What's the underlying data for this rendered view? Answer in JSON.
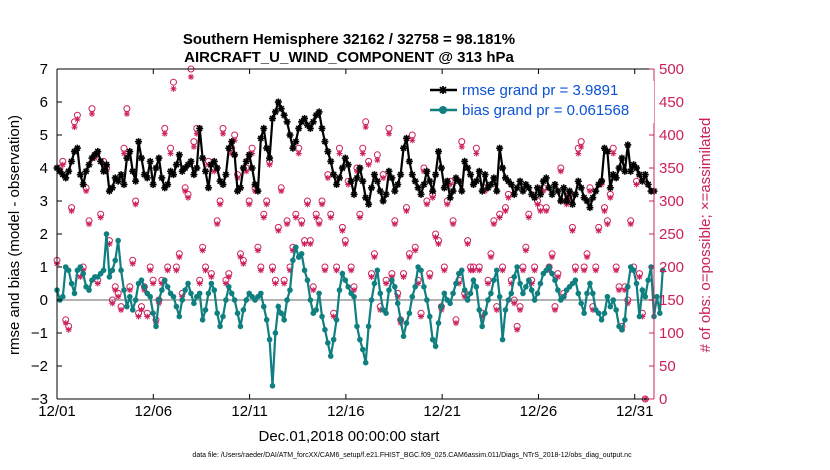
{
  "chart_data": {
    "type": "line",
    "title": "Southern Hemisphere 32162 / 32758 = 98.181%",
    "subtitle": "AIRCRAFT_U_WIND_COMPONENT @ 313 hPa",
    "xlabel": "Dec.01,2018 00:00:00 start",
    "ylabel_left": "rmse and bias (model - observation)",
    "ylabel_right": "# of obs: o=possible; ×=assimilated",
    "footer": "data file: /Users/raeder/DAI/ATM_forcXX/CAM6_setup/f.e21.FHIST_BGC.f09_025.CAM6assim.011/Diags_NTrS_2018-12/obs_diag_output.nc",
    "x_tick_labels": [
      "12/01",
      "12/06",
      "12/11",
      "12/16",
      "12/21",
      "12/26",
      "12/31"
    ],
    "x_tick_days": [
      0,
      5,
      10,
      15,
      20,
      25,
      30
    ],
    "xlim": [
      0,
      31
    ],
    "ylim_left": [
      -3,
      7
    ],
    "y_ticks_left": [
      -3,
      -2,
      -1,
      0,
      1,
      2,
      3,
      4,
      5,
      6,
      7
    ],
    "ylim_right": [
      0,
      500
    ],
    "y_ticks_right": [
      0,
      50,
      100,
      150,
      200,
      250,
      300,
      350,
      400,
      450,
      500
    ],
    "colors": {
      "rmse": "#000000",
      "bias": "#0f7f80",
      "obs": "#cc1f5c",
      "zero": "#b3b3b3",
      "legend_text": "#0a52d6"
    },
    "series": [
      {
        "name": "rmse grand pr = 3.9891",
        "axis": "left",
        "values": [
          4.0,
          3.9,
          3.8,
          3.7,
          3.9,
          4.2,
          4.5,
          4.6,
          3.8,
          3.5,
          3.9,
          4.1,
          4.3,
          4.4,
          4.5,
          4.2,
          3.9,
          4.1,
          3.3,
          3.4,
          3.7,
          3.6,
          3.8,
          3.5,
          4.3,
          4.5,
          3.9,
          3.6,
          4.8,
          4.3,
          3.8,
          3.7,
          4.2,
          3.5,
          4.0,
          4.3,
          3.7,
          3.4,
          3.5,
          3.9,
          3.8,
          4.1,
          4.4,
          3.9,
          4.0,
          4.1,
          4.2,
          3.8,
          4.0,
          5.2,
          4.3,
          3.9,
          3.4,
          4.1,
          4.2,
          4.0,
          3.6,
          3.5,
          3.8,
          4.6,
          4.8,
          4.4,
          3.3,
          3.4,
          4.0,
          4.2,
          4.4,
          4.0,
          3.5,
          3.3,
          4.9,
          5.2,
          4.6,
          4.3,
          5.5,
          5.7,
          6.0,
          5.8,
          5.6,
          5.4,
          5.0,
          4.6,
          4.8,
          5.2,
          5.4,
          5.5,
          5.3,
          5.2,
          5.4,
          5.6,
          5.7,
          5.2,
          4.8,
          4.5,
          4.2,
          3.8,
          3.5,
          3.7,
          4.0,
          4.3,
          4.1,
          3.6,
          3.2,
          3.7,
          4.0,
          3.6,
          3.1,
          2.9,
          3.4,
          3.8,
          3.6,
          3.3,
          3.0,
          3.2,
          3.9,
          3.7,
          3.3,
          3.5,
          3.8,
          4.6,
          4.9,
          4.2,
          3.8,
          3.6,
          3.4,
          3.2,
          3.5,
          3.9,
          3.6,
          3.3,
          3.8,
          4.5,
          4.0,
          3.4,
          3.6,
          3.1,
          3.3,
          3.7,
          3.6,
          3.3,
          4.2,
          4.0,
          3.8,
          3.5,
          3.6,
          3.9,
          3.3,
          3.8,
          3.4,
          3.5,
          3.7,
          3.3,
          4.6,
          4.0,
          3.7,
          3.6,
          3.5,
          3.2,
          3.4,
          3.6,
          3.3,
          3.5,
          3.4,
          3.2,
          3.1,
          3.4,
          3.2,
          3.6,
          3.7,
          3.4,
          3.2,
          3.5,
          3.3,
          3.0,
          3.4,
          3.0,
          3.3,
          2.9,
          3.2,
          3.6,
          3.4,
          3.1,
          3.0,
          2.8,
          3.1,
          3.3,
          3.5,
          3.6,
          4.6,
          4.5,
          3.4,
          3.8,
          3.7,
          4.0,
          4.3,
          3.9,
          4.7,
          3.9,
          4.1,
          4.0,
          3.8,
          3.6,
          3.8,
          3.5,
          3.3,
          3.3
        ]
      },
      {
        "name": "bias grand pr = 0.061568",
        "axis": "left",
        "values": [
          0.3,
          0.0,
          0.1,
          1.0,
          0.9,
          0.5,
          0.2,
          0.9,
          1.0,
          0.8,
          0.4,
          0.3,
          0.6,
          0.7,
          0.7,
          0.8,
          0.9,
          2.0,
          0.7,
          0.9,
          1.2,
          1.8,
          0.9,
          0.3,
          -0.2,
          0.1,
          -0.3,
          0.0,
          0.5,
          0.6,
          0.4,
          0.2,
          0.1,
          -0.4,
          -0.8,
          0.0,
          0.3,
          0.6,
          0.4,
          0.2,
          0.1,
          -0.2,
          -0.5,
          0.0,
          0.3,
          0.5,
          0.2,
          -0.1,
          0.1,
          0.2,
          -0.6,
          -0.3,
          0.2,
          0.5,
          0.3,
          -0.4,
          -0.8,
          -0.5,
          0.0,
          0.4,
          0.2,
          0.0,
          -0.4,
          -0.8,
          -0.3,
          0.0,
          0.2,
          0.1,
          0.0,
          0.1,
          0.2,
          -0.2,
          -0.6,
          -1.2,
          -2.6,
          -1.0,
          -0.2,
          -0.4,
          -0.6,
          0.0,
          0.3,
          1.2,
          1.6,
          1.3,
          1.4,
          0.9,
          0.6,
          0.0,
          -0.4,
          -0.3,
          0.2,
          -0.5,
          -0.9,
          -1.3,
          -1.7,
          -1.2,
          -0.6,
          0.3,
          0.8,
          0.6,
          0.4,
          0.2,
          0.1,
          -0.8,
          -1.2,
          -1.5,
          -1.9,
          -0.8,
          0.0,
          0.5,
          0.9,
          0.2,
          -0.3,
          -0.4,
          0.3,
          0.6,
          0.4,
          -0.1,
          -0.6,
          -1.1,
          -0.7,
          -0.4,
          0.1,
          0.4,
          1.0,
          0.9,
          0.4,
          0.0,
          -0.5,
          -1.2,
          -1.4,
          -0.7,
          -0.2,
          0.2,
          0.0,
          -0.1,
          0.2,
          0.5,
          0.8,
          0.9,
          0.3,
          0.0,
          0.2,
          0.6,
          0.4,
          -0.3,
          -0.8,
          -0.4,
          0.0,
          0.2,
          0.6,
          0.9,
          0.1,
          -1.2,
          -0.3,
          0.0,
          0.2,
          0.7,
          1.0,
          0.5,
          0.2,
          0.4,
          0.6,
          0.3,
          0.0,
          0.2,
          0.5,
          0.8,
          0.9,
          1.0,
          0.8,
          0.6,
          0.3,
          0.0,
          0.1,
          0.3,
          0.4,
          0.5,
          0.6,
          0.2,
          -0.1,
          -0.4,
          0.2,
          0.5,
          0.2,
          -0.3,
          -0.4,
          -0.6,
          -0.4,
          0.1,
          -0.2,
          0.0,
          -0.3,
          -0.8,
          -0.9,
          -0.6,
          0.4,
          1.0,
          0.9,
          0.5,
          -0.5,
          0.3,
          0.1,
          0.6,
          1.0,
          -0.5,
          0.1,
          -0.4,
          0.9
        ]
      },
      {
        "name": "possible obs count",
        "axis": "right",
        "values": [
          210,
          350,
          360,
          120,
          110,
          290,
          420,
          430,
          190,
          200,
          320,
          270,
          440,
          370,
          180,
          280,
          360,
          350,
          240,
          150,
          170,
          160,
          140,
          380,
          440,
          170,
          210,
          300,
          130,
          140,
          170,
          130,
          200,
          180,
          120,
          150,
          180,
          410,
          200,
          380,
          480,
          200,
          220,
          160,
          320,
          310,
          500,
          390,
          410,
          180,
          230,
          200,
          360,
          190,
          350,
          270,
          300,
          410,
          180,
          190,
          380,
          400,
          340,
          220,
          210,
          350,
          300,
          380,
          320,
          230,
          200,
          280,
          300,
          360,
          200,
          180,
          260,
          320,
          180,
          270,
          200,
          230,
          280,
          380,
          270,
          240,
          300,
          240,
          170,
          280,
          270,
          300,
          200,
          340,
          280,
          130,
          200,
          380,
          260,
          240,
          330,
          200,
          170,
          350,
          280,
          380,
          420,
          360,
          190,
          220,
          370,
          140,
          340,
          180,
          410,
          190,
          270,
          160,
          120,
          190,
          290,
          220,
          400,
          230,
          180,
          130,
          350,
          300,
          190,
          310,
          250,
          240,
          140,
          200,
          300,
          330,
          270,
          120,
          180,
          390,
          160,
          240,
          200,
          200,
          380,
          200,
          130,
          320,
          180,
          220,
          270,
          140,
          280,
          200,
          290,
          310,
          180,
          150,
          110,
          140,
          200,
          230,
          280,
          180,
          200,
          300,
          290,
          320,
          290,
          200,
          220,
          140,
          190,
          350,
          160,
          300,
          310,
          260,
          200,
          380,
          390,
          200,
          220,
          320,
          140,
          200,
          260,
          330,
          290,
          270,
          310,
          380,
          200,
          170,
          110,
          170,
          150,
          270,
          200,
          330,
          190,
          130,
          0
        ]
      },
      {
        "name": "assimilated obs count",
        "axis": "right",
        "values": [
          205,
          345,
          355,
          115,
          105,
          285,
          412,
          424,
          185,
          195,
          315,
          265,
          432,
          365,
          175,
          275,
          355,
          345,
          235,
          145,
          165,
          155,
          135,
          372,
          432,
          165,
          205,
          295,
          125,
          135,
          165,
          125,
          195,
          175,
          115,
          145,
          175,
          402,
          195,
          372,
          470,
          195,
          215,
          155,
          315,
          305,
          488,
          382,
          402,
          175,
          225,
          195,
          355,
          185,
          345,
          265,
          295,
          402,
          175,
          185,
          372,
          392,
          335,
          215,
          205,
          345,
          295,
          372,
          315,
          225,
          195,
          275,
          295,
          355,
          195,
          175,
          255,
          315,
          175,
          265,
          195,
          225,
          275,
          372,
          265,
          235,
          295,
          235,
          165,
          275,
          265,
          295,
          195,
          335,
          275,
          125,
          195,
          372,
          255,
          235,
          325,
          195,
          165,
          345,
          275,
          372,
          412,
          355,
          185,
          215,
          362,
          135,
          335,
          175,
          402,
          185,
          265,
          155,
          115,
          185,
          285,
          215,
          392,
          225,
          175,
          125,
          345,
          295,
          185,
          305,
          245,
          235,
          135,
          195,
          295,
          325,
          265,
          115,
          175,
          382,
          155,
          235,
          195,
          195,
          372,
          195,
          125,
          315,
          175,
          215,
          265,
          135,
          275,
          195,
          285,
          305,
          175,
          145,
          105,
          135,
          195,
          225,
          275,
          175,
          195,
          295,
          285,
          315,
          285,
          195,
          215,
          135,
          185,
          345,
          155,
          295,
          305,
          255,
          195,
          372,
          382,
          195,
          215,
          315,
          135,
          195,
          255,
          325,
          285,
          265,
          305,
          372,
          195,
          165,
          105,
          165,
          145,
          265,
          195,
          325,
          185,
          125,
          0
        ]
      }
    ],
    "legend_location": "top-right"
  }
}
